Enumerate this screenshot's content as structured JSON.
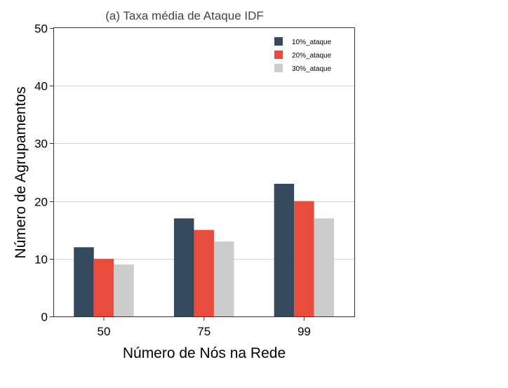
{
  "chart_data": {
    "type": "bar",
    "title": "(a) Taxa média de Ataque IDF",
    "xlabel": "Número de Nós na Rede",
    "ylabel": "Número de Agrupamentos",
    "categories": [
      "50",
      "75",
      "99"
    ],
    "ylim": [
      0,
      50
    ],
    "yticks": [
      0,
      10,
      20,
      30,
      40,
      50
    ],
    "grid": true,
    "legend_position": "top-right",
    "series": [
      {
        "name": "10%_ataque",
        "values": [
          12,
          17,
          23
        ],
        "color": "#34495e"
      },
      {
        "name": "20%_ataque",
        "values": [
          10,
          15,
          20
        ],
        "color": "#e74c3c"
      },
      {
        "name": "30%_ataque",
        "values": [
          9,
          13,
          17
        ],
        "color": "#cccccc"
      }
    ]
  }
}
